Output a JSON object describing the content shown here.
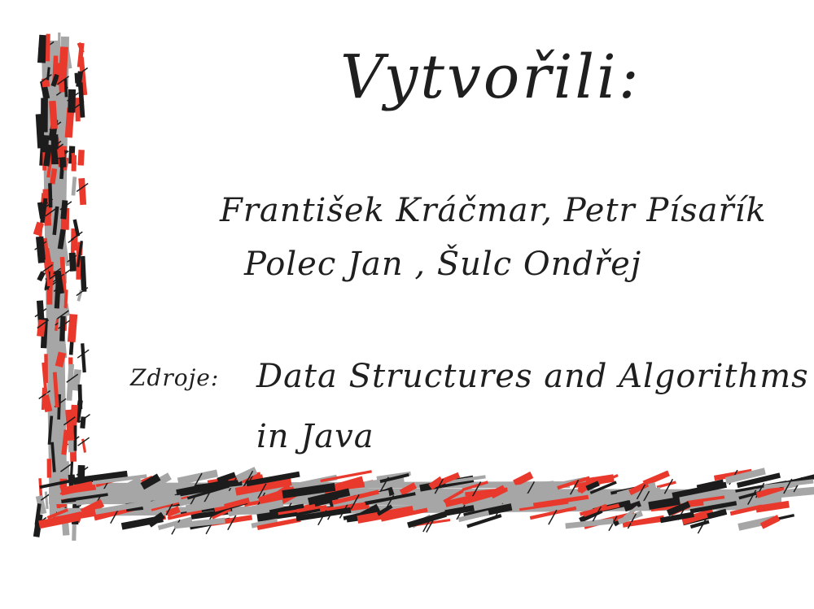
{
  "slide": {
    "title": "Vytvořili:",
    "authors_line1": "František Kráčmar, Petr Písařík",
    "authors_line2": "Polec Jan , Šulc Ondřej",
    "source_label": "Zdroje:",
    "source_line1": "Data Structures and Algorithms",
    "source_line2": "in Java"
  },
  "colors": {
    "background": "#ffffff",
    "ink": "#1f1f1f",
    "stroke_red": "#e8392c",
    "stroke_gray": "#a6a6a6",
    "stroke_black": "#1c1c1c"
  }
}
